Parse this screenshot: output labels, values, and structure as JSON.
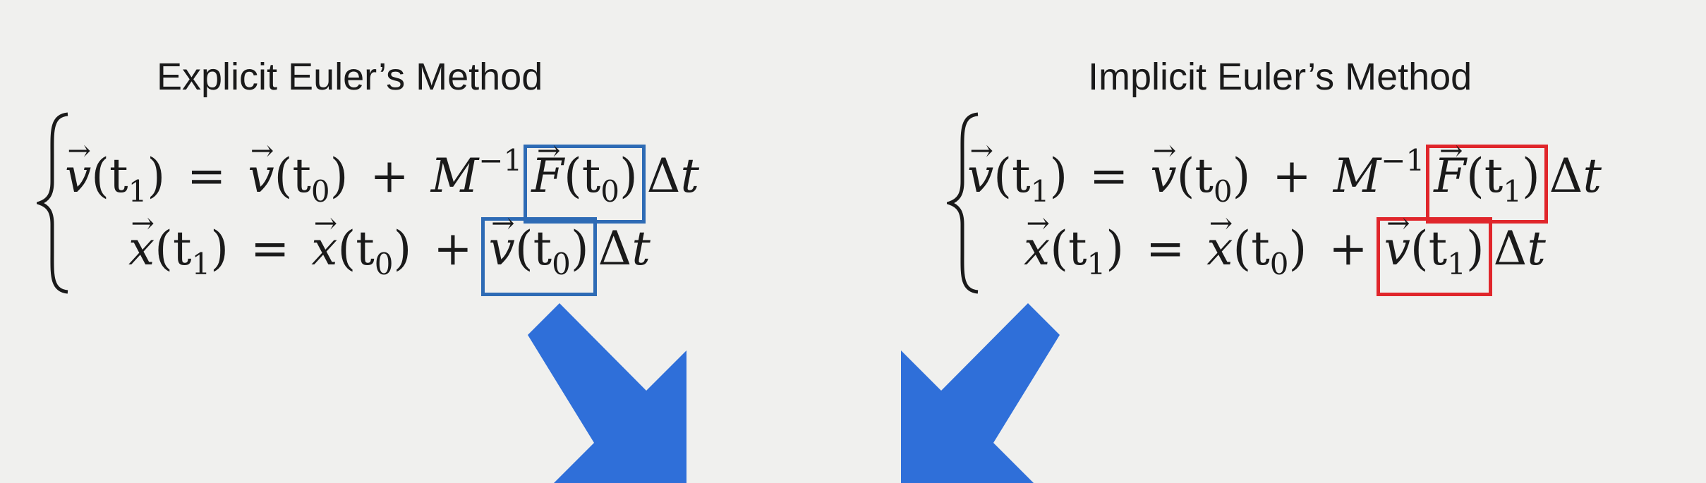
{
  "explicit": {
    "title": "Explicit Euler’s Method",
    "eq1": {
      "lhs_var": "v",
      "lhs_arg": "(t",
      "lhs_sub": "1",
      "lhs_close": ")",
      "eq": "=",
      "r1_var": "v",
      "r1_arg": "(t",
      "r1_sub": "0",
      "r1_close": ")",
      "plus": "+",
      "mass": "M",
      "mass_exp": "−1",
      "boxed_var": "F",
      "boxed_arg": "(t",
      "boxed_sub": "0",
      "boxed_close": ")",
      "tail": "Δ",
      "tail_var": "t"
    },
    "eq2": {
      "lhs_var": "x",
      "lhs_arg": "(t",
      "lhs_sub": "1",
      "lhs_close": ")",
      "eq": "=",
      "r1_var": "x",
      "r1_arg": "(t",
      "r1_sub": "0",
      "r1_close": ")",
      "plus": "+",
      "boxed_var": "v",
      "boxed_arg": "(t",
      "boxed_sub": "0",
      "boxed_close": ")",
      "tail": "Δ",
      "tail_var": "t"
    },
    "highlight_color": "#2e6bb5"
  },
  "implicit": {
    "title": "Implicit Euler’s Method",
    "eq1": {
      "lhs_var": "v",
      "lhs_arg": "(t",
      "lhs_sub": "1",
      "lhs_close": ")",
      "eq": "=",
      "r1_var": "v",
      "r1_arg": "(t",
      "r1_sub": "0",
      "r1_close": ")",
      "plus": "+",
      "mass": "M",
      "mass_exp": "−1",
      "boxed_var": "F",
      "boxed_arg": "(t",
      "boxed_sub": "1",
      "boxed_close": ")",
      "tail": "Δ",
      "tail_var": "t"
    },
    "eq2": {
      "lhs_var": "x",
      "lhs_arg": "(t",
      "lhs_sub": "1",
      "lhs_close": ")",
      "eq": "=",
      "r1_var": "x",
      "r1_arg": "(t",
      "r1_sub": "0",
      "r1_close": ")",
      "plus": "+",
      "boxed_var": "v",
      "boxed_arg": "(t",
      "boxed_sub": "1",
      "boxed_close": ")",
      "tail": "Δ",
      "tail_var": "t"
    },
    "highlight_color": "#e0262b"
  },
  "arrows": {
    "color": "#2f6fd9",
    "left_icon": "arrow-down-right-icon",
    "right_icon": "arrow-down-left-icon"
  }
}
